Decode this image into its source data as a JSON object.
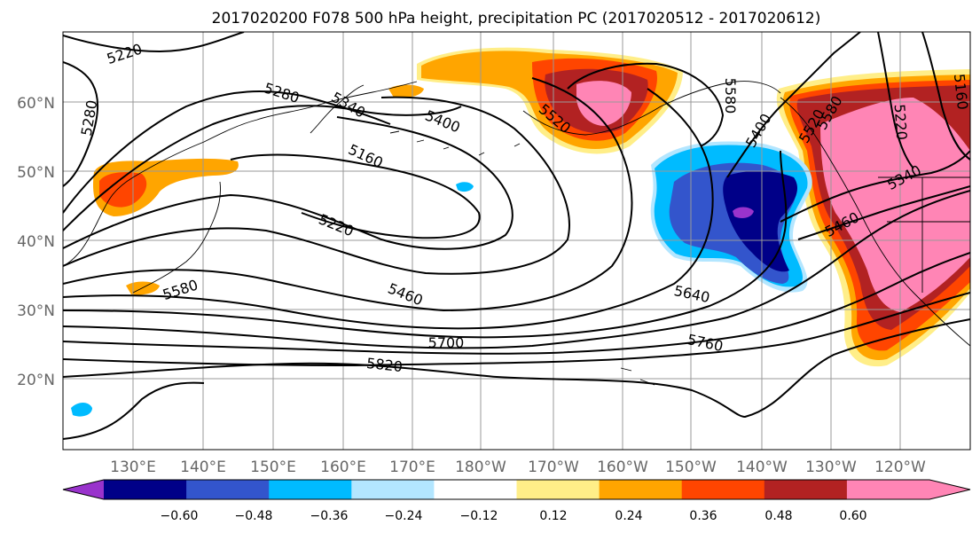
{
  "title": "2017020200 F078 500 hPa height, precipitation PC (2017020512 - 2017020612)",
  "map": {
    "lat_labels": [
      "60°N",
      "50°N",
      "40°N",
      "30°N",
      "20°N"
    ],
    "lon_labels": [
      "130°E",
      "140°E",
      "150°E",
      "160°E",
      "170°E",
      "180°W",
      "170°W",
      "160°W",
      "150°W",
      "140°W",
      "130°W",
      "120°W"
    ],
    "grid": true,
    "contour_labels": [
      "5220",
      "5280",
      "5280",
      "5340",
      "5400",
      "5160",
      "5220",
      "5460",
      "5580",
      "5700",
      "5820",
      "5520",
      "5580",
      "5400",
      "5640",
      "5760",
      "5460",
      "5340",
      "5220",
      "5160",
      "5520",
      "5580"
    ]
  },
  "colorbar": {
    "tick_labels": [
      "−0.60",
      "−0.48",
      "−0.36",
      "−0.24",
      "−0.12",
      "0.12",
      "0.24",
      "0.36",
      "0.48",
      "0.60"
    ],
    "colors": [
      "#9933cc",
      "#000088",
      "#3355cc",
      "#00bbff",
      "#b3e6ff",
      "#ffffff",
      "#ffee88",
      "#ffa500",
      "#ff4500",
      "#b22222",
      "#ff85b5",
      "#ff85b5"
    ],
    "extend": "both"
  }
}
